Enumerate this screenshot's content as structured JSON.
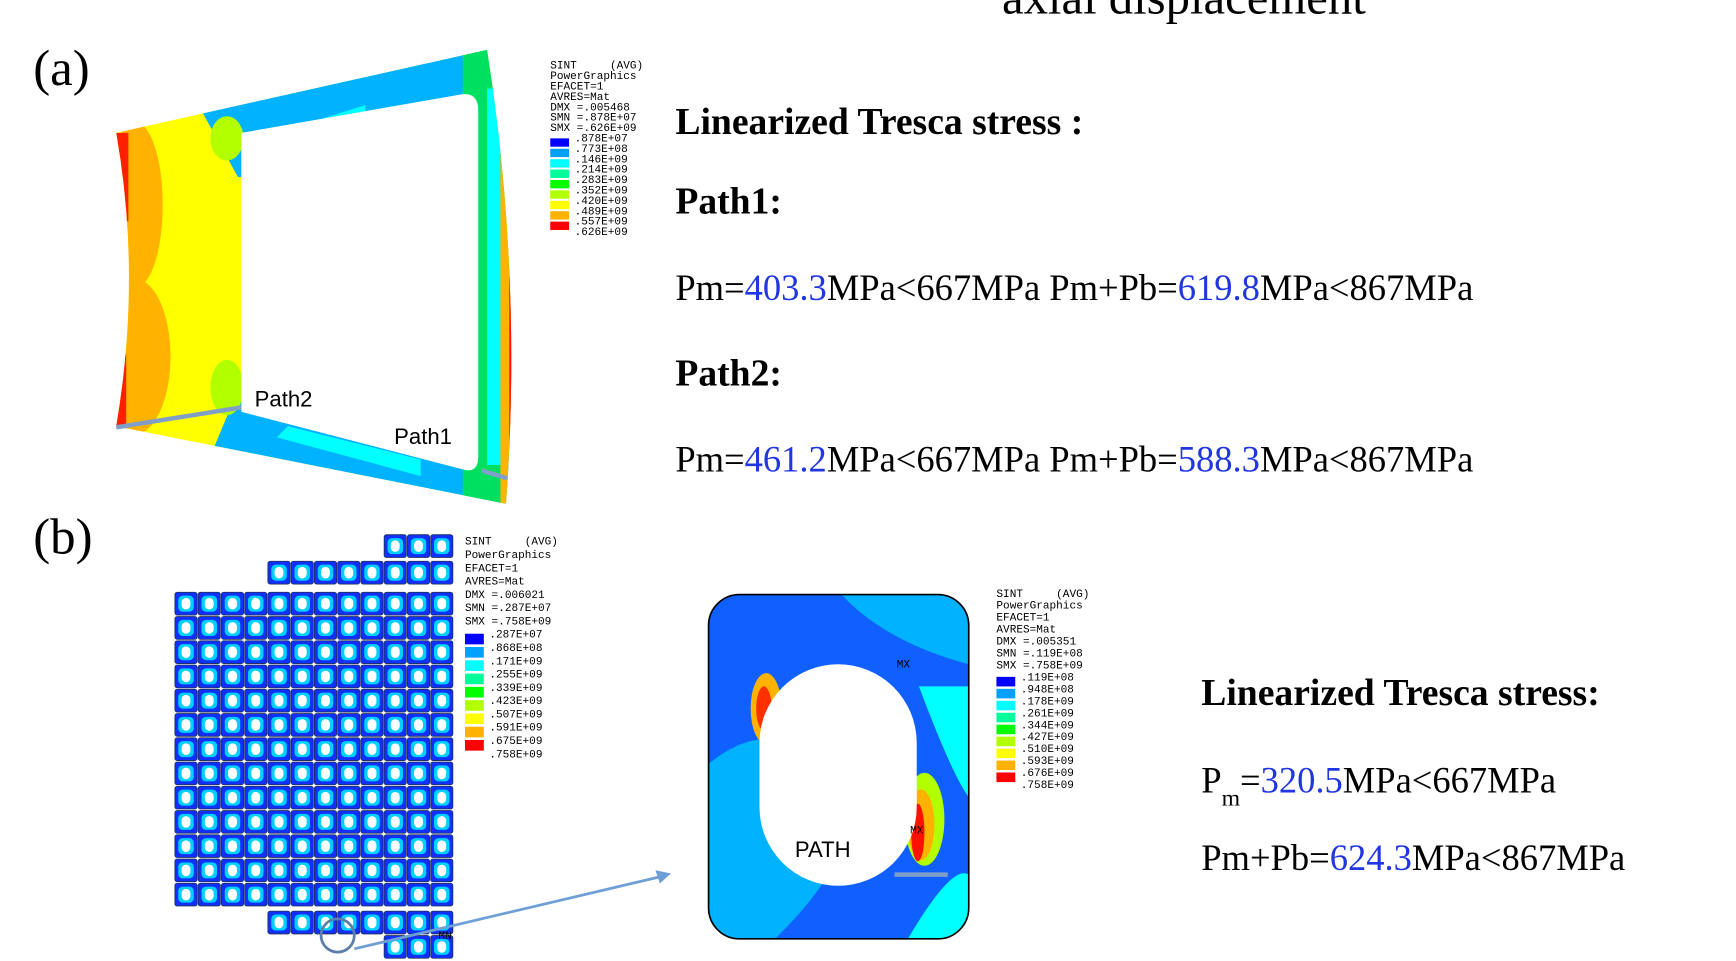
{
  "header": {
    "title": "axial displacement"
  },
  "panel_a": {
    "label": "(a)",
    "legend": {
      "lines": [
        "SINT     (AVG)",
        "PowerGraphics",
        "EFACET=1",
        "AVRES=Mat",
        "DMX =.005468",
        "SMN =.878E+07",
        "SMX =.626E+09"
      ],
      "levels": [
        ".878E+07",
        ".773E+08",
        ".146E+09",
        ".214E+09",
        ".283E+09",
        ".352E+09",
        ".420E+09",
        ".489E+09",
        ".557E+09",
        ".626E+09"
      ]
    },
    "paths": [
      "Path2",
      "Path1"
    ],
    "results": {
      "heading": "Linearized Tresca stress :",
      "groups": [
        {
          "name": "Path1:",
          "line": [
            {
              "text": "Pm="
            },
            {
              "text": "403.3",
              "color": "#2036e0"
            },
            {
              "text": "MPa<667MPa Pm+Pb="
            },
            {
              "text": "619.8",
              "color": "#2036e0"
            },
            {
              "text": "MPa<867MPa"
            }
          ]
        },
        {
          "name": "Path2:",
          "line": [
            {
              "text": "Pm="
            },
            {
              "text": "461.2",
              "color": "#2036e0"
            },
            {
              "text": "MPa<667MPa Pm+Pb="
            },
            {
              "text": "588.3",
              "color": "#2036e0"
            },
            {
              "text": "MPa<867MPa"
            }
          ]
        }
      ]
    }
  },
  "panel_b": {
    "label": "(b)",
    "legend_full": {
      "lines": [
        "SINT     (AVG)",
        "PowerGraphics",
        "EFACET=1",
        "AVRES=Mat",
        "DMX =.006021",
        "SMN =.287E+07",
        "SMX =.758E+09"
      ],
      "levels": [
        ".287E+07",
        ".868E+08",
        ".171E+09",
        ".255E+09",
        ".339E+09",
        ".423E+09",
        ".507E+09",
        ".591E+09",
        ".675E+09",
        ".758E+09"
      ]
    },
    "legend_cell": {
      "lines": [
        "SINT     (AVG)",
        "PowerGraphics",
        "EFACET=1",
        "AVRES=Mat",
        "DMX =.005351",
        "SMN =.119E+08",
        "SMX =.758E+09"
      ],
      "levels": [
        ".119E+08",
        ".948E+08",
        ".178E+09",
        ".261E+09",
        ".344E+09",
        ".427E+09",
        ".510E+09",
        ".593E+09",
        ".676E+09",
        ".758E+09"
      ]
    },
    "path_label": "PATH",
    "markers": [
      "MX",
      "MX",
      "MN"
    ],
    "results": {
      "heading": "Linearized Tresca stress:",
      "lines": [
        [
          {
            "text": "P"
          },
          {
            "text": "m",
            "sub": true
          },
          {
            "text": "="
          },
          {
            "text": "320.5",
            "color": "#2036e0"
          },
          {
            "text": "MPa<667MPa"
          }
        ],
        [
          {
            "text": "Pm+Pb="
          },
          {
            "text": "624.3",
            "color": "#2036e0"
          },
          {
            "text": "MPa<867MPa"
          }
        ]
      ]
    }
  },
  "contour_colors": [
    "#0000ff",
    "#00a0ff",
    "#00ffff",
    "#00ff9a",
    "#00ff00",
    "#b2ff00",
    "#ffff00",
    "#ffb200",
    "#ff0000"
  ]
}
